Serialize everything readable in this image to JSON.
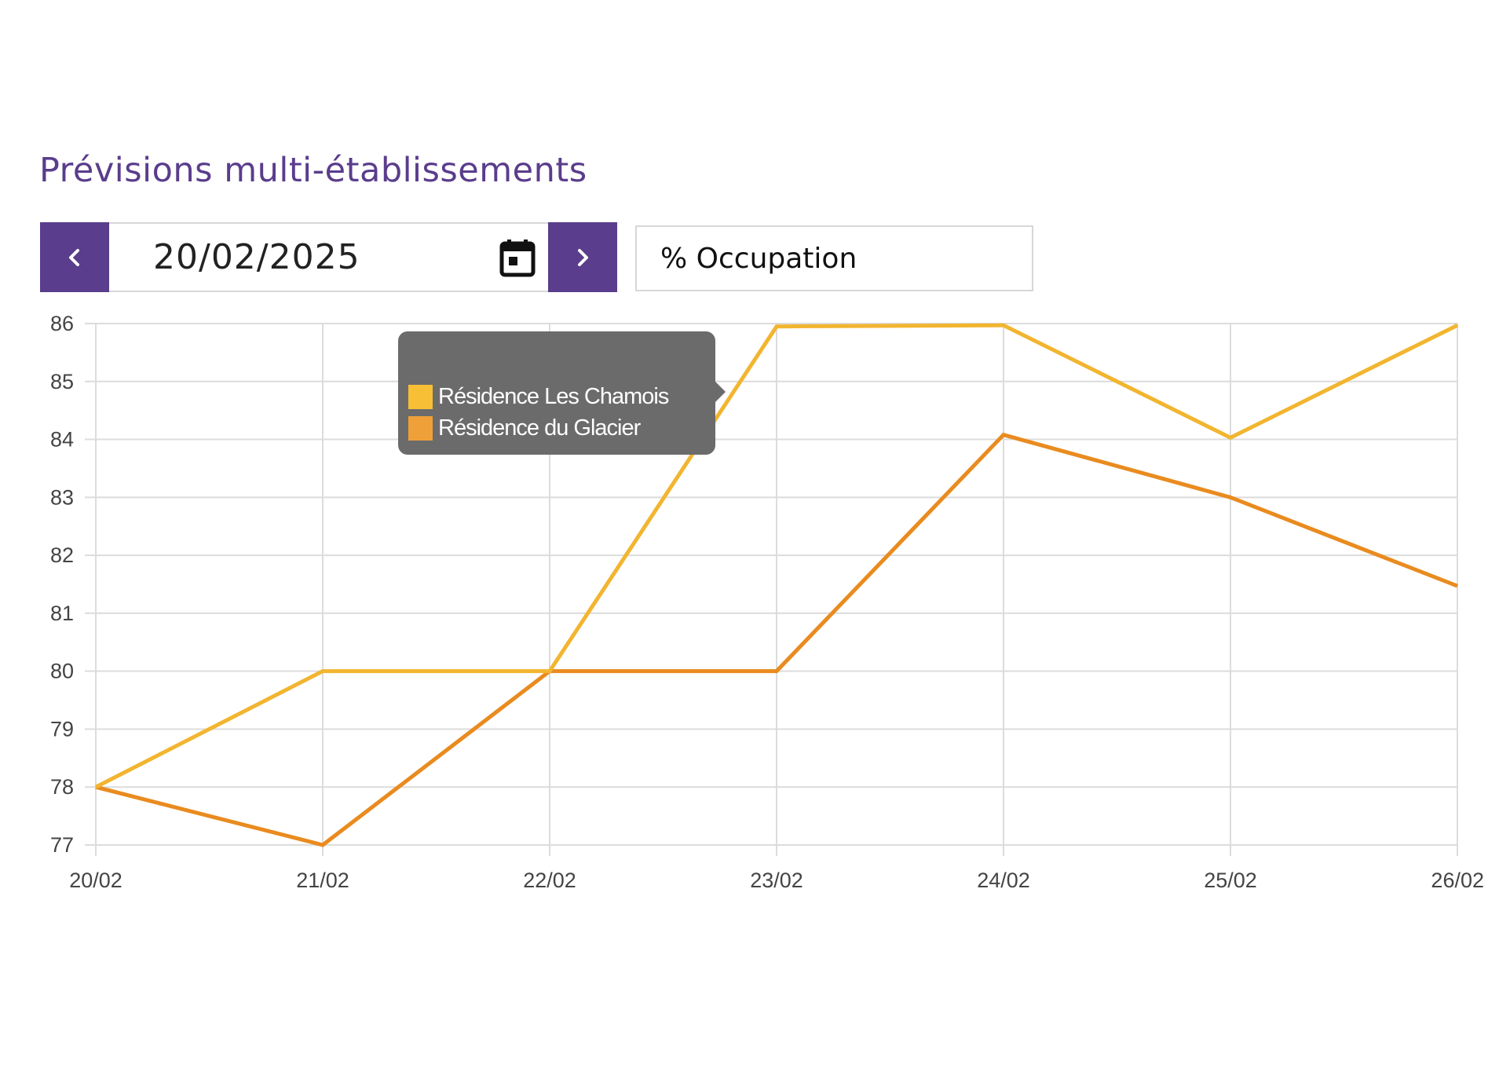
{
  "header": {
    "title": "Prévisions multi-établissements"
  },
  "date_nav": {
    "prev_icon": "chevron-left-icon",
    "date_value": "20/02/2025",
    "calendar_icon": "calendar-icon",
    "next_icon": "chevron-right-icon"
  },
  "metric_select": {
    "value": "% Occupation"
  },
  "tooltip": {
    "items": [
      {
        "label": "Résidence Les Chamois",
        "color": "#f7bf35"
      },
      {
        "label": "Résidence du Glacier",
        "color": "#f0a038"
      }
    ]
  },
  "chart_data": {
    "type": "line",
    "categories": [
      "20/02",
      "21/02",
      "22/02",
      "23/02",
      "24/02",
      "25/02",
      "26/02"
    ],
    "yticks": [
      "77",
      "78",
      "79",
      "80",
      "81",
      "82",
      "83",
      "84",
      "85",
      "86"
    ],
    "ylim": [
      77,
      86
    ],
    "grid": true,
    "series": [
      {
        "name": "Résidence Les Chamois",
        "color": "#f2b530",
        "values": [
          78,
          80,
          80,
          85.95,
          85.97,
          84.03,
          85.97
        ]
      },
      {
        "name": "Résidence du Glacier",
        "color": "#e98b1f",
        "values": [
          78,
          77,
          80,
          80,
          84.08,
          83,
          81.47
        ]
      }
    ]
  }
}
